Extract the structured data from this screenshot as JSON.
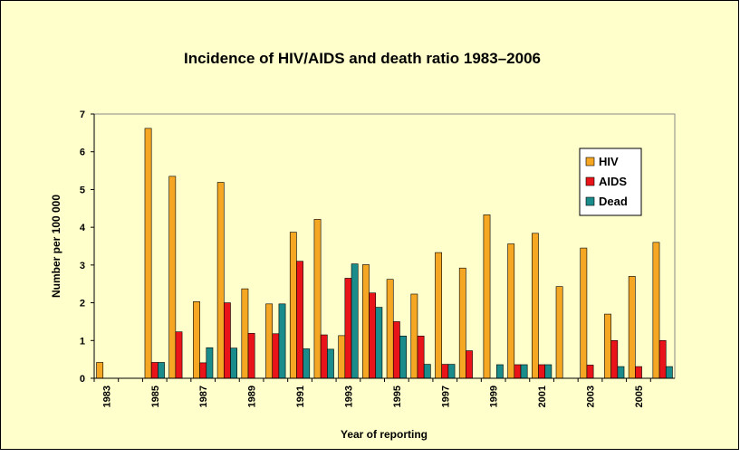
{
  "chart_data": {
    "type": "bar",
    "title": "Incidence of HIV/AIDS and death ratio 1983–2006",
    "x_label": "Year of reporting",
    "y_label": "Number per 100 000",
    "categories": [
      "1983",
      null,
      "1985",
      null,
      "1987",
      null,
      "1989",
      null,
      "1991",
      null,
      "1993",
      null,
      "1995",
      null,
      "1997",
      null,
      "1999",
      null,
      "2001",
      null,
      "2003",
      null,
      "2005",
      null
    ],
    "series": [
      {
        "name": "HIV",
        "color": "#f5a623",
        "values": [
          0.42,
          0,
          6.62,
          5.35,
          2.03,
          5.19,
          2.37,
          1.97,
          3.87,
          4.21,
          1.13,
          3.01,
          2.62,
          2.23,
          3.33,
          2.92,
          4.33,
          3.56,
          3.84,
          2.43,
          3.45,
          1.7,
          2.7,
          3.6
        ]
      },
      {
        "name": "AIDS",
        "color": "#e8141a",
        "values": [
          0,
          0,
          0.42,
          1.23,
          0.41,
          2.0,
          1.19,
          1.18,
          3.1,
          1.15,
          2.65,
          2.26,
          1.5,
          1.12,
          0.37,
          0.73,
          0,
          0.36,
          0.36,
          0,
          0.35,
          1.0,
          0.31,
          1.0
        ]
      },
      {
        "name": "Dead",
        "color": "#1a8c8c",
        "values": [
          0,
          0,
          0.42,
          0,
          0.81,
          0.8,
          0,
          1.97,
          0.78,
          0.77,
          3.03,
          1.88,
          1.12,
          0.37,
          0.37,
          0,
          0.36,
          0.36,
          0.36,
          0,
          0,
          0.31,
          0,
          0.31
        ]
      }
    ],
    "ylim": [
      0,
      7
    ],
    "yticks": [
      0,
      1,
      2,
      3,
      4,
      5,
      6,
      7
    ],
    "grid": false,
    "legend": "right"
  }
}
